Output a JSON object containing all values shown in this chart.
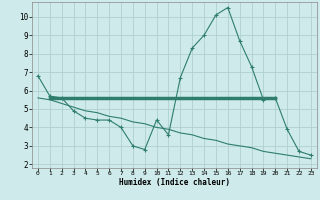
{
  "xlabel": "Humidex (Indice chaleur)",
  "background_color": "#ceeaea",
  "grid_color": "#b0d0d0",
  "line_color": "#2e7d6e",
  "xlim": [
    -0.5,
    23.5
  ],
  "ylim": [
    1.8,
    10.8
  ],
  "xticks": [
    0,
    1,
    2,
    3,
    4,
    5,
    6,
    7,
    8,
    9,
    10,
    11,
    12,
    13,
    14,
    15,
    16,
    17,
    18,
    19,
    20,
    21,
    22,
    23
  ],
  "yticks": [
    2,
    3,
    4,
    5,
    6,
    7,
    8,
    9,
    10
  ],
  "curve1_x": [
    0,
    1,
    2,
    3,
    4,
    5,
    6,
    7,
    8,
    9,
    10,
    11,
    12,
    13,
    14,
    15,
    16,
    17,
    18,
    19,
    20,
    21,
    22,
    23
  ],
  "curve1_y": [
    6.8,
    5.7,
    5.6,
    4.9,
    4.5,
    4.4,
    4.4,
    4.0,
    3.0,
    2.8,
    4.4,
    3.6,
    6.7,
    8.3,
    9.0,
    10.1,
    10.5,
    8.7,
    7.3,
    5.5,
    5.6,
    3.9,
    2.7,
    2.5
  ],
  "curve2_x": [
    1,
    20
  ],
  "curve2_y": [
    5.6,
    5.6
  ],
  "curve3_x": [
    0,
    1,
    2,
    3,
    4,
    5,
    6,
    7,
    8,
    9,
    10,
    11,
    12,
    13,
    14,
    15,
    16,
    17,
    18,
    19,
    20,
    21,
    22,
    23
  ],
  "curve3_y": [
    5.6,
    5.5,
    5.3,
    5.1,
    4.9,
    4.8,
    4.6,
    4.5,
    4.3,
    4.2,
    4.0,
    3.9,
    3.7,
    3.6,
    3.4,
    3.3,
    3.1,
    3.0,
    2.9,
    2.7,
    2.6,
    2.5,
    2.4,
    2.3
  ]
}
